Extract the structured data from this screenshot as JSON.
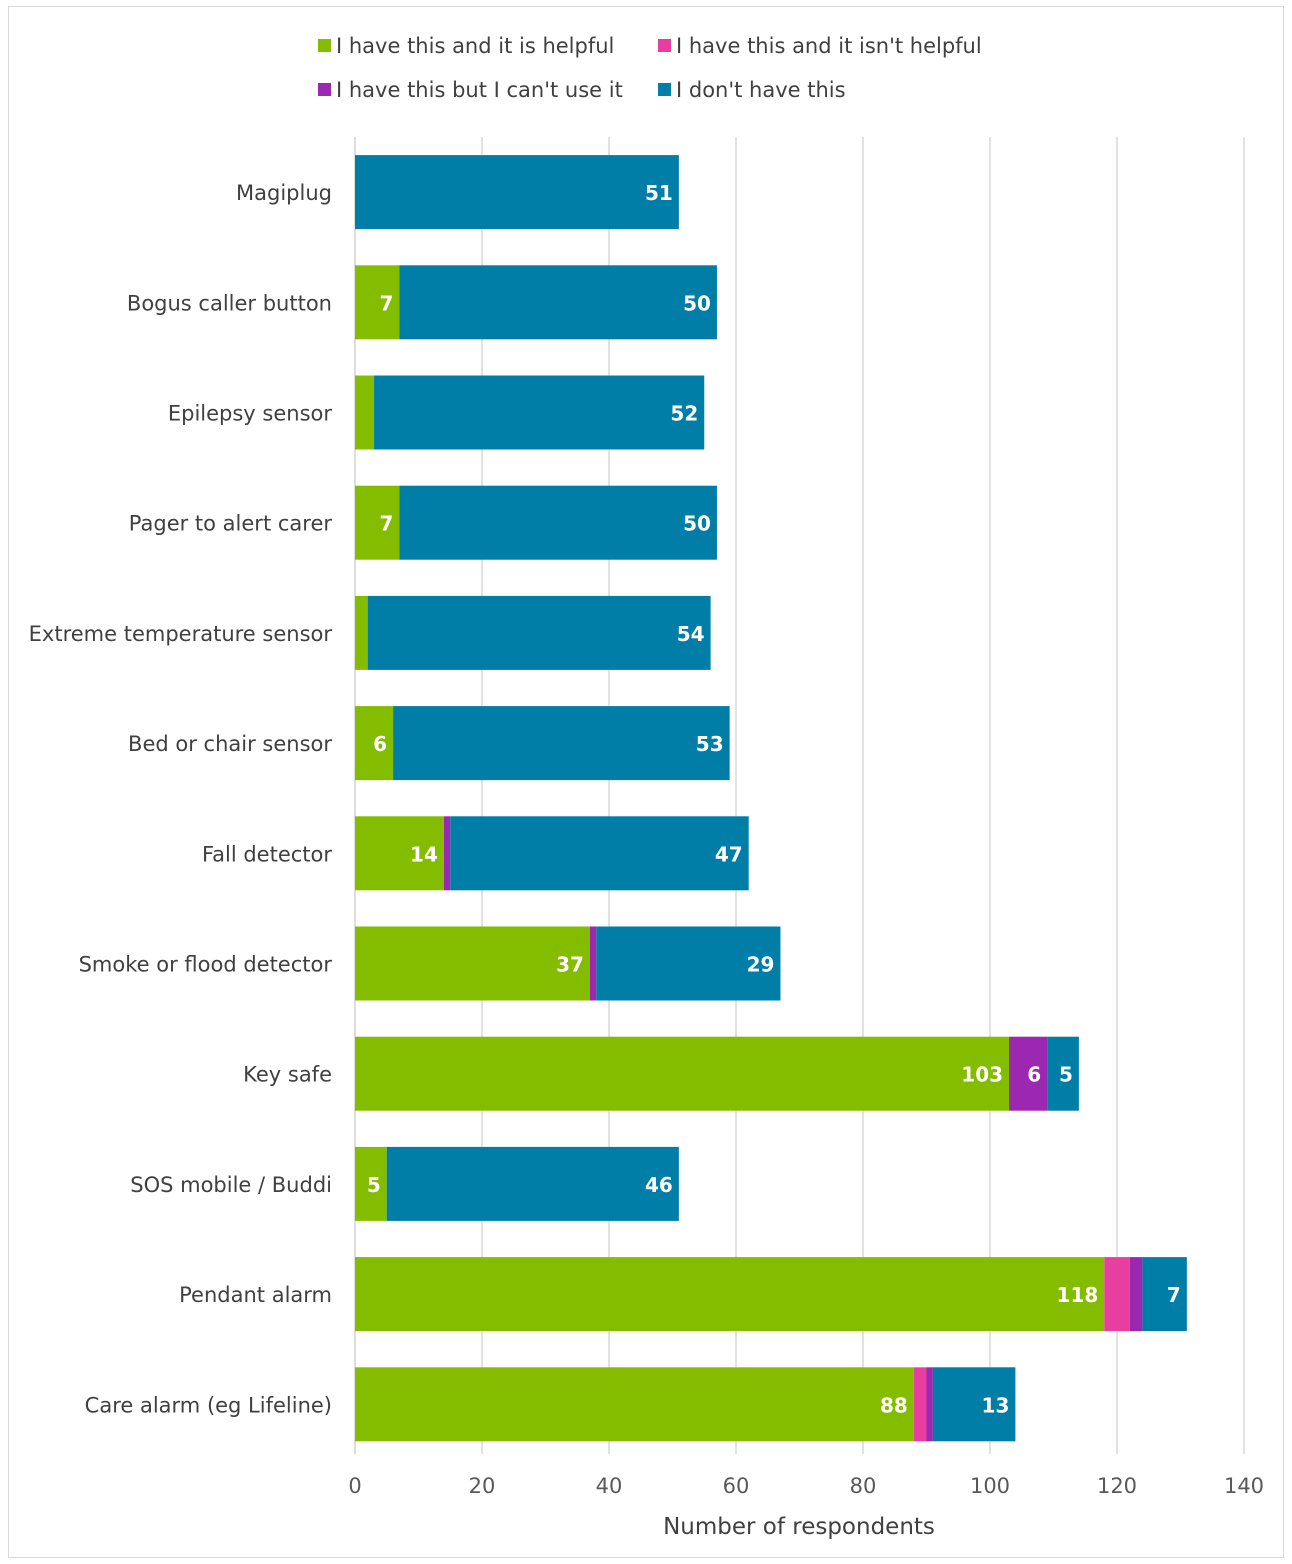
{
  "chart_data": {
    "type": "bar",
    "orientation": "horizontal",
    "stacked": true,
    "title": "",
    "xlabel": "Number of respondents",
    "ylabel": "",
    "xlim": [
      0,
      140
    ],
    "xticks": [
      0,
      20,
      40,
      60,
      80,
      100,
      120,
      140
    ],
    "grid": "vertical",
    "legend_position": "top",
    "categories": [
      "Magiplug",
      "Bogus caller button",
      "Epilepsy sensor",
      "Pager to alert carer",
      "Extreme temperature sensor",
      "Bed or chair sensor",
      "Fall detector",
      "Smoke or flood detector",
      "Key safe",
      "SOS mobile / Buddi",
      "Pendant alarm",
      "Care alarm (eg Lifeline)"
    ],
    "series": [
      {
        "name": "I have this and it is helpful",
        "color": "#84bd00",
        "values": [
          0,
          7,
          3,
          7,
          2,
          6,
          14,
          37,
          103,
          5,
          118,
          88
        ],
        "labels": [
          "",
          "7",
          "",
          "7",
          "",
          "6",
          "14",
          "37",
          "103",
          "5",
          "118",
          "88"
        ]
      },
      {
        "name": "I have this and it isn't helpful",
        "color": "#e83e9f",
        "values": [
          0,
          0,
          0,
          0,
          0,
          0,
          0,
          0,
          0,
          0,
          4,
          2
        ],
        "labels": [
          "",
          "",
          "",
          "",
          "",
          "",
          "",
          "",
          "",
          "",
          "",
          ""
        ]
      },
      {
        "name": "I have this but I can't use it",
        "color": "#9c27b0",
        "values": [
          0,
          0,
          0,
          0,
          0,
          0,
          1,
          1,
          6,
          0,
          2,
          1
        ],
        "labels": [
          "",
          "",
          "",
          "",
          "",
          "",
          "",
          "",
          "6",
          "",
          "",
          ""
        ]
      },
      {
        "name": "I don't have this",
        "color": "#007ea7",
        "values": [
          51,
          50,
          52,
          50,
          54,
          53,
          47,
          29,
          5,
          46,
          7,
          13
        ],
        "labels": [
          "51",
          "50",
          "52",
          "50",
          "54",
          "53",
          "47",
          "29",
          "5",
          "46",
          "7",
          "13"
        ]
      }
    ]
  }
}
